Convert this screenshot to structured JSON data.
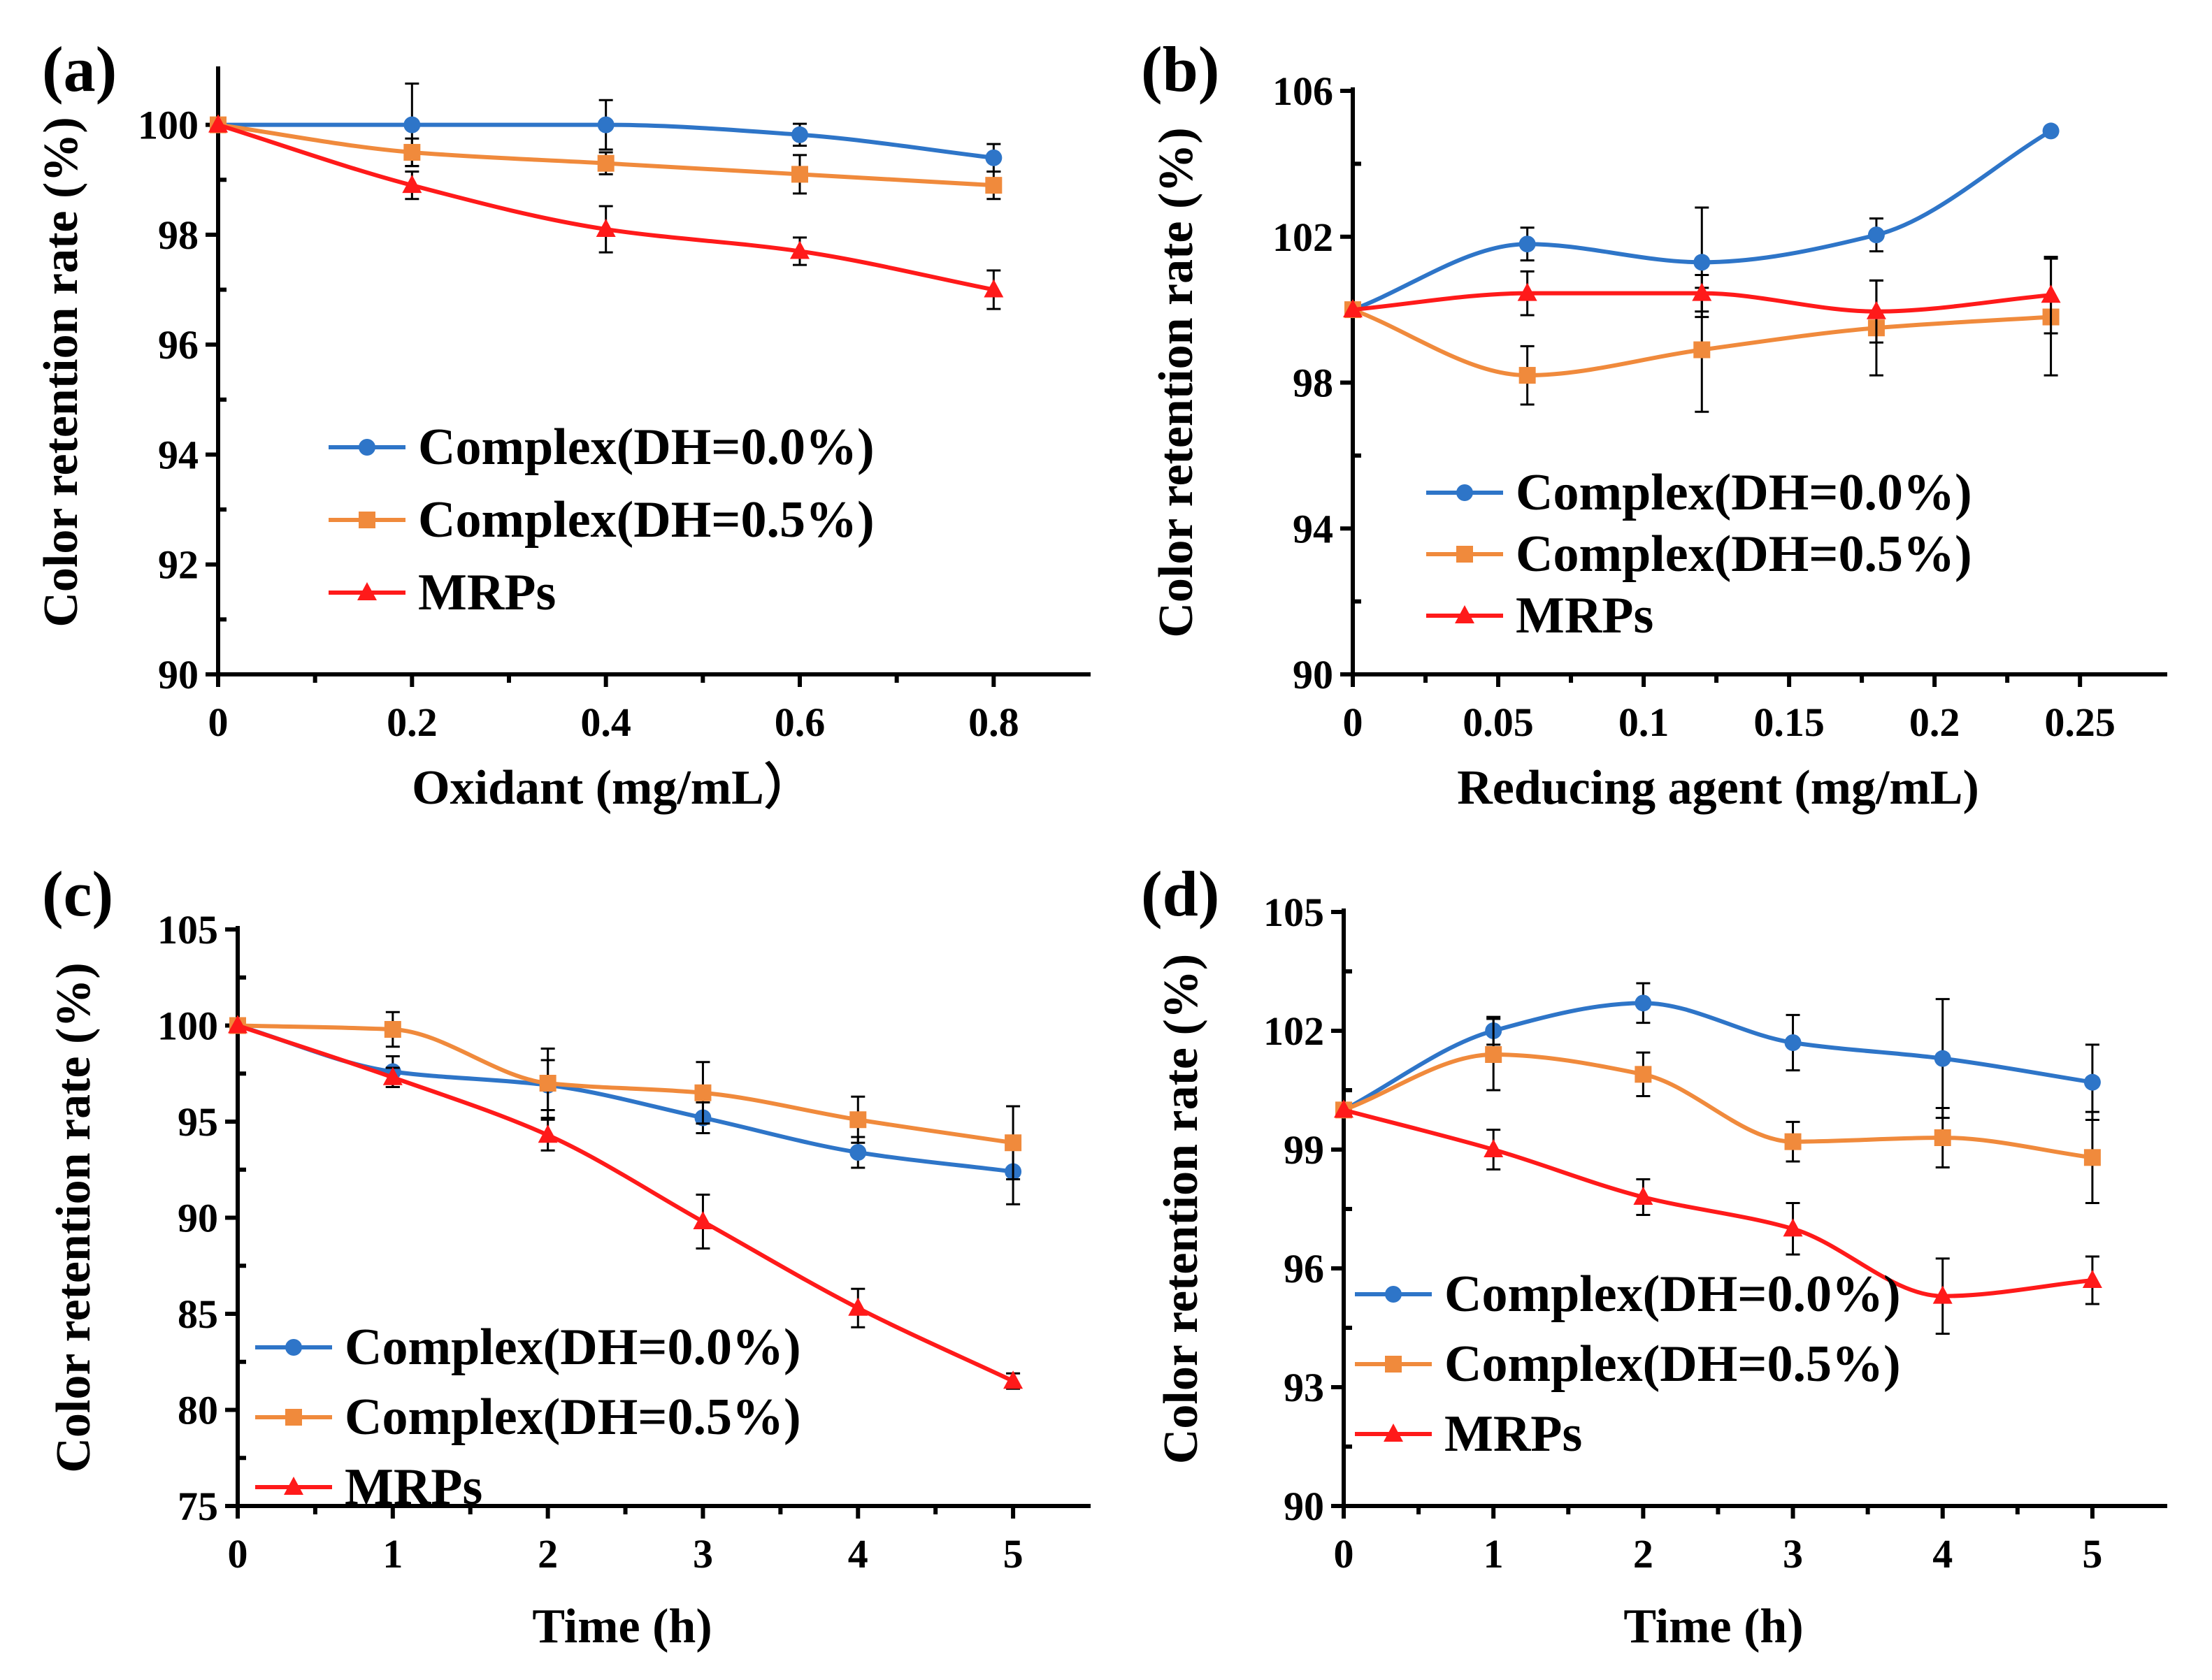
{
  "chart_data": [
    {
      "panel_label": "(a)",
      "type": "line",
      "xlabel": "Oxidant (mg/mL）",
      "ylabel": "Color retention rate (%)",
      "xlim": [
        0,
        0.9
      ],
      "ylim": [
        90,
        101
      ],
      "xticks": [
        0,
        0.2,
        0.4,
        0.6,
        0.8
      ],
      "xtick_labels": [
        "0",
        "0.2",
        "0.4",
        "0.6",
        "0.8"
      ],
      "yticks": [
        90,
        92,
        94,
        96,
        98,
        100
      ],
      "ytick_labels": [
        "90",
        "92",
        "94",
        "96",
        "98",
        "100"
      ],
      "legend_position": "center-left",
      "series": [
        {
          "name": "Complex(DH=0.0%)",
          "color": "#2e75c8",
          "marker": "circle",
          "x": [
            0,
            0.2,
            0.4,
            0.6,
            0.8
          ],
          "values": [
            100,
            100,
            100,
            99.82,
            99.4
          ],
          "errors": [
            0,
            0.75,
            0.45,
            0.2,
            0.25
          ]
        },
        {
          "name": "Complex(DH=0.5%)",
          "color": "#f08a3c",
          "marker": "square",
          "x": [
            0,
            0.2,
            0.4,
            0.6,
            0.8
          ],
          "values": [
            100,
            99.5,
            99.3,
            99.1,
            98.9
          ],
          "errors": [
            0,
            0.25,
            0.2,
            0.35,
            0.25
          ]
        },
        {
          "name": "MRPs",
          "color": "#ff1a1a",
          "marker": "triangle",
          "x": [
            0,
            0.2,
            0.4,
            0.6,
            0.8
          ],
          "values": [
            100,
            98.9,
            98.1,
            97.7,
            97.0
          ],
          "errors": [
            0,
            0.25,
            0.42,
            0.25,
            0.35
          ]
        }
      ]
    },
    {
      "panel_label": "(b)",
      "type": "line",
      "xlabel": "Reducing agent (mg/mL)",
      "ylabel": "Color retention rate (%)",
      "xlim": [
        0,
        0.28
      ],
      "ylim": [
        90,
        106
      ],
      "xticks": [
        0,
        0.05,
        0.1,
        0.15,
        0.2,
        0.25
      ],
      "xtick_labels": [
        "0",
        "0.05",
        "0.1",
        "0.15",
        "0.2",
        "0.25"
      ],
      "yticks": [
        90,
        94,
        98,
        102,
        106
      ],
      "ytick_labels": [
        "90",
        "94",
        "98",
        "102",
        "106"
      ],
      "legend_position": "center-left",
      "series": [
        {
          "name": "Complex(DH=0.0%)",
          "color": "#2e75c8",
          "marker": "circle",
          "x": [
            0,
            0.06,
            0.12,
            0.18,
            0.24
          ],
          "values": [
            100,
            101.8,
            101.3,
            102.05,
            104.9
          ],
          "errors": [
            0,
            0.45,
            1.5,
            0.45,
            0.1
          ]
        },
        {
          "name": "Complex(DH=0.5%)",
          "color": "#f08a3c",
          "marker": "square",
          "x": [
            0,
            0.06,
            0.12,
            0.18,
            0.24
          ],
          "values": [
            100,
            98.2,
            98.9,
            99.5,
            99.8
          ],
          "errors": [
            0,
            0.8,
            1.7,
            1.3,
            1.6
          ]
        },
        {
          "name": "MRPs",
          "color": "#ff1a1a",
          "marker": "triangle",
          "x": [
            0,
            0.06,
            0.12,
            0.18,
            0.24
          ],
          "values": [
            100,
            100.45,
            100.45,
            99.95,
            100.4
          ],
          "errors": [
            0,
            0.6,
            0.5,
            0.85,
            1.05
          ]
        }
      ]
    },
    {
      "panel_label": "(c)",
      "type": "line",
      "xlabel": "Time (h)",
      "ylabel": "Color retention rate (%)",
      "xlim": [
        0,
        5.5
      ],
      "ylim": [
        75,
        105
      ],
      "xticks": [
        0,
        1,
        2,
        3,
        4,
        5
      ],
      "xtick_labels": [
        "0",
        "1",
        "2",
        "3",
        "4",
        "5"
      ],
      "yticks": [
        75,
        80,
        85,
        90,
        95,
        100,
        105
      ],
      "ytick_labels": [
        "75",
        "80",
        "85",
        "90",
        "95",
        "100",
        "105"
      ],
      "legend_position": "bottom-left",
      "series": [
        {
          "name": "Complex(DH=0.0%)",
          "color": "#2e75c8",
          "marker": "circle",
          "x": [
            0,
            1,
            2,
            3,
            4,
            5
          ],
          "values": [
            100,
            97.6,
            96.9,
            95.2,
            93.4,
            92.4
          ],
          "errors": [
            0,
            0.8,
            1.3,
            0.8,
            0.8,
            1.7
          ]
        },
        {
          "name": "Complex(DH=0.5%)",
          "color": "#f08a3c",
          "marker": "square",
          "x": [
            0,
            1,
            2,
            3,
            4,
            5
          ],
          "values": [
            100,
            99.8,
            97.0,
            96.5,
            95.1,
            93.9
          ],
          "errors": [
            0,
            0.9,
            1.8,
            1.6,
            1.2,
            1.9
          ]
        },
        {
          "name": "MRPs",
          "color": "#ff1a1a",
          "marker": "triangle",
          "x": [
            0,
            1,
            2,
            3,
            4,
            5
          ],
          "values": [
            100,
            97.3,
            94.3,
            89.8,
            85.3,
            81.5
          ],
          "errors": [
            0,
            0.5,
            0.8,
            1.4,
            1.0,
            0.4
          ]
        }
      ]
    },
    {
      "panel_label": "(d)",
      "type": "line",
      "xlabel": "Time (h)",
      "ylabel": "Color retention rate (%)",
      "xlim": [
        0,
        5.5
      ],
      "ylim": [
        90,
        105
      ],
      "xticks": [
        0,
        1,
        2,
        3,
        4,
        5
      ],
      "xtick_labels": [
        "0",
        "1",
        "2",
        "3",
        "4",
        "5"
      ],
      "yticks": [
        90,
        93,
        96,
        99,
        102,
        105
      ],
      "ytick_labels": [
        "90",
        "93",
        "96",
        "99",
        "102",
        "105"
      ],
      "legend_position": "bottom-left",
      "series": [
        {
          "name": "Complex(DH=0.0%)",
          "color": "#2e75c8",
          "marker": "circle",
          "x": [
            0,
            1,
            2,
            3,
            4,
            5
          ],
          "values": [
            100,
            102.0,
            102.7,
            101.7,
            101.3,
            100.7
          ],
          "errors": [
            0,
            0.35,
            0.5,
            0.7,
            1.5,
            0.95
          ]
        },
        {
          "name": "Complex(DH=0.5%)",
          "color": "#f08a3c",
          "marker": "square",
          "x": [
            0,
            1,
            2,
            3,
            4,
            5
          ],
          "values": [
            100,
            101.4,
            100.9,
            99.2,
            99.3,
            98.8
          ],
          "errors": [
            0,
            0.9,
            0.55,
            0.5,
            0.75,
            1.15
          ]
        },
        {
          "name": "MRPs",
          "color": "#ff1a1a",
          "marker": "triangle",
          "x": [
            0,
            1,
            2,
            3,
            4,
            5
          ],
          "values": [
            100,
            99.0,
            97.8,
            97.0,
            95.3,
            95.7
          ],
          "errors": [
            0,
            0.5,
            0.45,
            0.65,
            0.95,
            0.6
          ]
        }
      ]
    }
  ]
}
